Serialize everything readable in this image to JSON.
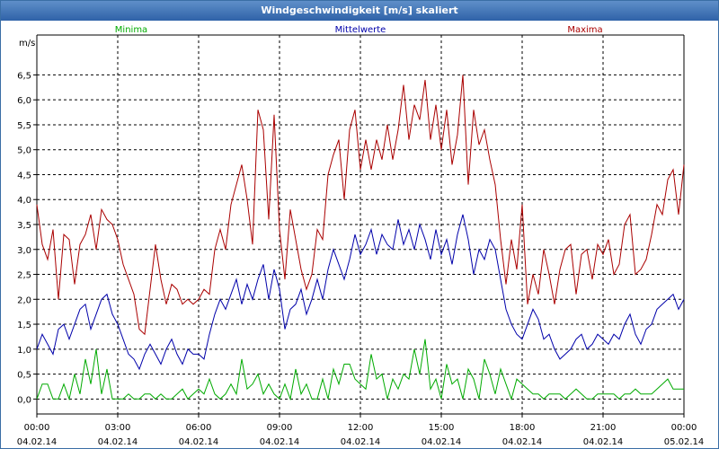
{
  "window": {
    "title": "Windgeschwindigkeit [m/s] skaliert"
  },
  "chart_data": {
    "type": "line",
    "title": "Windgeschwindigkeit [m/s] skaliert",
    "ylabel": "m/s",
    "xlabel": "",
    "ylim": [
      -0.3,
      7.3
    ],
    "yticks": [
      0.0,
      0.5,
      1.0,
      1.5,
      2.0,
      2.5,
      3.0,
      3.5,
      4.0,
      4.5,
      5.0,
      5.5,
      6.0,
      6.5
    ],
    "ytick_labels": [
      "0,0",
      "0,5",
      "1,0",
      "1,5",
      "2,0",
      "2,5",
      "3,0",
      "3,5",
      "4,0",
      "4,5",
      "5,0",
      "5,5",
      "6,0",
      "6,5"
    ],
    "xlim": [
      0,
      24
    ],
    "xticks": [
      0,
      3,
      6,
      9,
      12,
      15,
      18,
      21,
      24
    ],
    "xtick_labels_time": [
      "00:00",
      "03:00",
      "06:00",
      "09:00",
      "12:00",
      "15:00",
      "18:00",
      "21:00",
      "00:00"
    ],
    "xtick_labels_date": [
      "04.02.14",
      "04.02.14",
      "04.02.14",
      "04.02.14",
      "04.02.14",
      "04.02.14",
      "04.02.14",
      "04.02.14",
      "05.02.14"
    ],
    "grid": true,
    "legend_position": "top",
    "x": [
      0.0,
      0.2,
      0.4,
      0.6,
      0.8,
      1.0,
      1.2,
      1.4,
      1.6,
      1.8,
      2.0,
      2.2,
      2.4,
      2.6,
      2.8,
      3.0,
      3.2,
      3.4,
      3.6,
      3.8,
      4.0,
      4.2,
      4.4,
      4.6,
      4.8,
      5.0,
      5.2,
      5.4,
      5.6,
      5.8,
      6.0,
      6.2,
      6.4,
      6.6,
      6.8,
      7.0,
      7.2,
      7.4,
      7.6,
      7.8,
      8.0,
      8.2,
      8.4,
      8.6,
      8.8,
      9.0,
      9.2,
      9.4,
      9.6,
      9.8,
      10.0,
      10.2,
      10.4,
      10.6,
      10.8,
      11.0,
      11.2,
      11.4,
      11.6,
      11.8,
      12.0,
      12.2,
      12.4,
      12.6,
      12.8,
      13.0,
      13.2,
      13.4,
      13.6,
      13.8,
      14.0,
      14.2,
      14.4,
      14.6,
      14.8,
      15.0,
      15.2,
      15.4,
      15.6,
      15.8,
      16.0,
      16.2,
      16.4,
      16.6,
      16.8,
      17.0,
      17.2,
      17.4,
      17.6,
      17.8,
      18.0,
      18.2,
      18.4,
      18.6,
      18.8,
      19.0,
      19.2,
      19.4,
      19.6,
      19.8,
      20.0,
      20.2,
      20.4,
      20.6,
      20.8,
      21.0,
      21.2,
      21.4,
      21.6,
      21.8,
      22.0,
      22.2,
      22.4,
      22.6,
      22.8,
      23.0,
      23.2,
      23.4,
      23.6,
      23.8,
      24.0
    ],
    "series": [
      {
        "name": "Minima",
        "color": "#00aa00",
        "values": [
          0.0,
          0.3,
          0.3,
          0.0,
          0.0,
          0.3,
          0.0,
          0.5,
          0.1,
          0.8,
          0.3,
          1.0,
          0.1,
          0.6,
          0.0,
          0.0,
          0.0,
          0.1,
          0.0,
          0.0,
          0.1,
          0.1,
          0.0,
          0.1,
          0.0,
          0.0,
          0.1,
          0.2,
          0.0,
          0.1,
          0.2,
          0.1,
          0.4,
          0.1,
          0.0,
          0.1,
          0.3,
          0.1,
          0.8,
          0.2,
          0.3,
          0.5,
          0.1,
          0.3,
          0.1,
          0.0,
          0.3,
          0.0,
          0.6,
          0.1,
          0.3,
          0.0,
          0.0,
          0.4,
          0.0,
          0.6,
          0.3,
          0.7,
          0.7,
          0.4,
          0.3,
          0.2,
          0.9,
          0.4,
          0.5,
          0.0,
          0.4,
          0.2,
          0.5,
          0.4,
          1.0,
          0.5,
          1.2,
          0.2,
          0.4,
          0.0,
          0.7,
          0.3,
          0.4,
          0.0,
          0.6,
          0.4,
          0.0,
          0.8,
          0.5,
          0.1,
          0.6,
          0.3,
          0.0,
          0.4,
          0.3,
          0.2,
          0.1,
          0.1,
          0.0,
          0.1,
          0.1,
          0.1,
          0.0,
          0.1,
          0.2,
          0.1,
          0.0,
          0.0,
          0.1,
          0.1,
          0.1,
          0.1,
          0.0,
          0.1,
          0.1,
          0.2,
          0.1,
          0.1,
          0.1,
          0.2,
          0.3,
          0.4,
          0.2,
          0.2,
          0.2
        ]
      },
      {
        "name": "Mittelwerte",
        "color": "#0000aa",
        "values": [
          1.0,
          1.3,
          1.1,
          0.9,
          1.4,
          1.5,
          1.2,
          1.5,
          1.8,
          1.9,
          1.4,
          1.7,
          2.0,
          2.1,
          1.7,
          1.5,
          1.2,
          0.9,
          0.8,
          0.6,
          0.9,
          1.1,
          0.9,
          0.7,
          1.0,
          1.2,
          0.9,
          0.7,
          1.0,
          0.9,
          0.9,
          0.8,
          1.3,
          1.7,
          2.0,
          1.8,
          2.1,
          2.4,
          1.9,
          2.3,
          2.0,
          2.4,
          2.7,
          2.0,
          2.6,
          2.2,
          1.4,
          1.8,
          1.9,
          2.2,
          1.7,
          2.0,
          2.4,
          2.0,
          2.6,
          3.0,
          2.7,
          2.4,
          2.8,
          3.3,
          2.9,
          3.1,
          3.4,
          2.9,
          3.3,
          3.1,
          3.0,
          3.6,
          3.1,
          3.4,
          3.0,
          3.5,
          3.2,
          2.8,
          3.4,
          2.9,
          3.2,
          2.7,
          3.3,
          3.7,
          3.2,
          2.5,
          3.0,
          2.8,
          3.2,
          3.0,
          2.4,
          1.8,
          1.5,
          1.3,
          1.2,
          1.5,
          1.8,
          1.6,
          1.2,
          1.3,
          1.0,
          0.8,
          0.9,
          1.0,
          1.2,
          1.3,
          1.0,
          1.1,
          1.3,
          1.2,
          1.1,
          1.3,
          1.2,
          1.5,
          1.7,
          1.3,
          1.1,
          1.4,
          1.5,
          1.8,
          1.9,
          2.0,
          2.1,
          1.8,
          2.0
        ]
      },
      {
        "name": "Maxima",
        "color": "#aa0000",
        "values": [
          3.9,
          3.1,
          2.8,
          3.4,
          2.0,
          3.3,
          3.2,
          2.3,
          3.1,
          3.3,
          3.7,
          3.0,
          3.8,
          3.6,
          3.5,
          3.2,
          2.7,
          2.4,
          2.1,
          1.4,
          1.3,
          2.2,
          3.1,
          2.4,
          1.9,
          2.3,
          2.2,
          1.9,
          2.0,
          1.9,
          2.0,
          2.2,
          2.1,
          3.0,
          3.4,
          3.0,
          3.9,
          4.3,
          4.7,
          4.0,
          3.1,
          5.8,
          5.4,
          3.6,
          5.7,
          3.4,
          2.4,
          3.8,
          3.2,
          2.6,
          2.2,
          2.5,
          3.4,
          3.2,
          4.5,
          4.9,
          5.2,
          4.0,
          5.4,
          5.8,
          4.6,
          5.2,
          4.6,
          5.2,
          4.8,
          5.5,
          4.8,
          5.4,
          6.3,
          5.2,
          5.9,
          5.6,
          6.4,
          5.2,
          5.9,
          5.0,
          5.8,
          4.7,
          5.3,
          6.5,
          4.3,
          5.8,
          5.1,
          5.4,
          4.8,
          4.3,
          3.2,
          2.3,
          3.2,
          2.6,
          3.9,
          1.9,
          2.5,
          2.1,
          3.0,
          2.5,
          1.9,
          2.6,
          3.0,
          3.1,
          2.1,
          2.9,
          3.0,
          2.4,
          3.1,
          2.9,
          3.2,
          2.5,
          2.7,
          3.5,
          3.7,
          2.5,
          2.6,
          2.8,
          3.3,
          3.9,
          3.7,
          4.4,
          4.6,
          3.7,
          4.7
        ]
      }
    ]
  }
}
